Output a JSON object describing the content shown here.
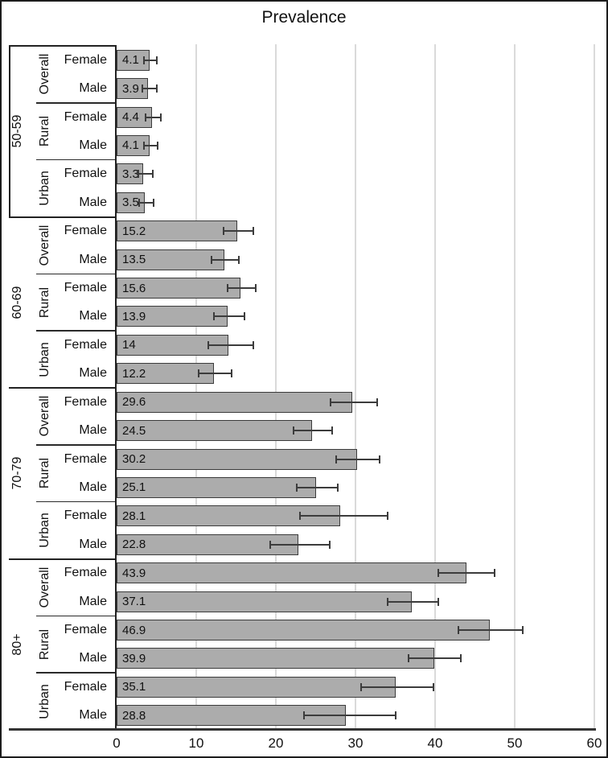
{
  "chart_data": {
    "type": "bar",
    "orientation": "horizontal",
    "title": "Prevalence",
    "xlabel": "",
    "ylabel": "",
    "xlim": [
      0,
      60
    ],
    "x_ticks": [
      0,
      10,
      20,
      30,
      40,
      50,
      60
    ],
    "grid": "vertical gridlines at each x tick",
    "legend": "none",
    "value_labels": "inside-left of each bar",
    "error_bars": "horizontal CI with end caps, ci = [low, high]",
    "colors": {
      "bar_fill": "#acacac",
      "bar_border": "#3b3b3b",
      "error_bar": "#3c3c3c",
      "gridline": "#dadada",
      "axis": "#222222",
      "text": "#111111"
    },
    "groups": [
      {
        "age": "50-59",
        "subgroups": [
          {
            "label": "Overall",
            "rows": [
              {
                "sex": "Female",
                "value": 4.1,
                "ci": [
                  3.4,
                  5.1
                ]
              },
              {
                "sex": "Male",
                "value": 3.9,
                "ci": [
                  3.2,
                  5.0
                ]
              }
            ]
          },
          {
            "label": "Rural",
            "rows": [
              {
                "sex": "Female",
                "value": 4.4,
                "ci": [
                  3.6,
                  5.6
                ]
              },
              {
                "sex": "Male",
                "value": 4.1,
                "ci": [
                  3.4,
                  5.2
                ]
              }
            ]
          },
          {
            "label": "Urban",
            "rows": [
              {
                "sex": "Female",
                "value": 3.3,
                "ci": [
                  2.7,
                  4.5
                ]
              },
              {
                "sex": "Male",
                "value": 3.5,
                "ci": [
                  2.8,
                  4.6
                ]
              }
            ]
          }
        ]
      },
      {
        "age": "60-69",
        "subgroups": [
          {
            "label": "Overall",
            "rows": [
              {
                "sex": "Female",
                "value": 15.2,
                "ci": [
                  13.4,
                  17.2
                ]
              },
              {
                "sex": "Male",
                "value": 13.5,
                "ci": [
                  11.9,
                  15.4
                ]
              }
            ]
          },
          {
            "label": "Rural",
            "rows": [
              {
                "sex": "Female",
                "value": 15.6,
                "ci": [
                  13.9,
                  17.5
                ]
              },
              {
                "sex": "Male",
                "value": 13.9,
                "ci": [
                  12.2,
                  16.1
                ]
              }
            ]
          },
          {
            "label": "Urban",
            "rows": [
              {
                "sex": "Female",
                "value": 14,
                "ci": [
                  11.5,
                  17.2
                ]
              },
              {
                "sex": "Male",
                "value": 12.2,
                "ci": [
                  10.3,
                  14.4
                ]
              }
            ]
          }
        ]
      },
      {
        "age": "70-79",
        "subgroups": [
          {
            "label": "Overall",
            "rows": [
              {
                "sex": "Female",
                "value": 29.6,
                "ci": [
                  26.9,
                  32.7
                ]
              },
              {
                "sex": "Male",
                "value": 24.5,
                "ci": [
                  22.2,
                  27.1
                ]
              }
            ]
          },
          {
            "label": "Rural",
            "rows": [
              {
                "sex": "Female",
                "value": 30.2,
                "ci": [
                  27.6,
                  33.0
                ]
              },
              {
                "sex": "Male",
                "value": 25.1,
                "ci": [
                  22.6,
                  27.8
                ]
              }
            ]
          },
          {
            "label": "Urban",
            "rows": [
              {
                "sex": "Female",
                "value": 28.1,
                "ci": [
                  23.0,
                  34.0
                ]
              },
              {
                "sex": "Male",
                "value": 22.8,
                "ci": [
                  19.3,
                  26.8
                ]
              }
            ]
          }
        ]
      },
      {
        "age": "80+",
        "subgroups": [
          {
            "label": "Overall",
            "rows": [
              {
                "sex": "Female",
                "value": 43.9,
                "ci": [
                  40.4,
                  47.5
                ]
              },
              {
                "sex": "Male",
                "value": 37.1,
                "ci": [
                  34.0,
                  40.4
                ]
              }
            ]
          },
          {
            "label": "Rural",
            "rows": [
              {
                "sex": "Female",
                "value": 46.9,
                "ci": [
                  42.9,
                  51.0
                ]
              },
              {
                "sex": "Male",
                "value": 39.9,
                "ci": [
                  36.7,
                  43.2
                ]
              }
            ]
          },
          {
            "label": "Urban",
            "rows": [
              {
                "sex": "Female",
                "value": 35.1,
                "ci": [
                  30.7,
                  39.8
                ]
              },
              {
                "sex": "Male",
                "value": 28.8,
                "ci": [
                  23.5,
                  35.0
                ]
              }
            ]
          }
        ]
      }
    ]
  }
}
